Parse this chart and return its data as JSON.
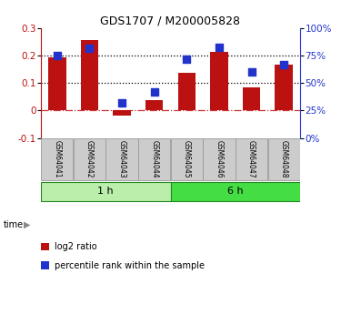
{
  "title": "GDS1707 / M200005828",
  "samples": [
    "GSM64041",
    "GSM64042",
    "GSM64043",
    "GSM64044",
    "GSM64045",
    "GSM64046",
    "GSM64047",
    "GSM64048"
  ],
  "log2_ratio": [
    0.195,
    0.258,
    -0.018,
    0.038,
    0.137,
    0.215,
    0.085,
    0.168
  ],
  "percentile_rank_pct": [
    75,
    82,
    32,
    42,
    72,
    83,
    60,
    67
  ],
  "bar_color": "#bb1111",
  "dot_color": "#2233cc",
  "left_ylim": [
    -0.1,
    0.3
  ],
  "right_ylim": [
    0,
    100
  ],
  "left_yticks": [
    -0.1,
    0.0,
    0.1,
    0.2,
    0.3
  ],
  "right_yticks": [
    0,
    25,
    50,
    75,
    100
  ],
  "left_ytick_labels": [
    "-0.1",
    "0",
    "0.1",
    "0.2",
    "0.3"
  ],
  "right_ytick_labels": [
    "0%",
    "25%",
    "50%",
    "75%",
    "100%"
  ],
  "hlines": [
    0.1,
    0.2
  ],
  "zero_line_color": "#cc3333",
  "legend_log2": "log2 ratio",
  "legend_pct": "percentile rank within the sample",
  "group1_label": "1 h",
  "group2_label": "6 h",
  "group1_color": "#bbeeaa",
  "group2_color": "#44dd44",
  "group_border_color": "#228822",
  "box_color": "#cccccc",
  "box_border_color": "#999999",
  "bg_color": "#ffffff",
  "time_label": "time"
}
